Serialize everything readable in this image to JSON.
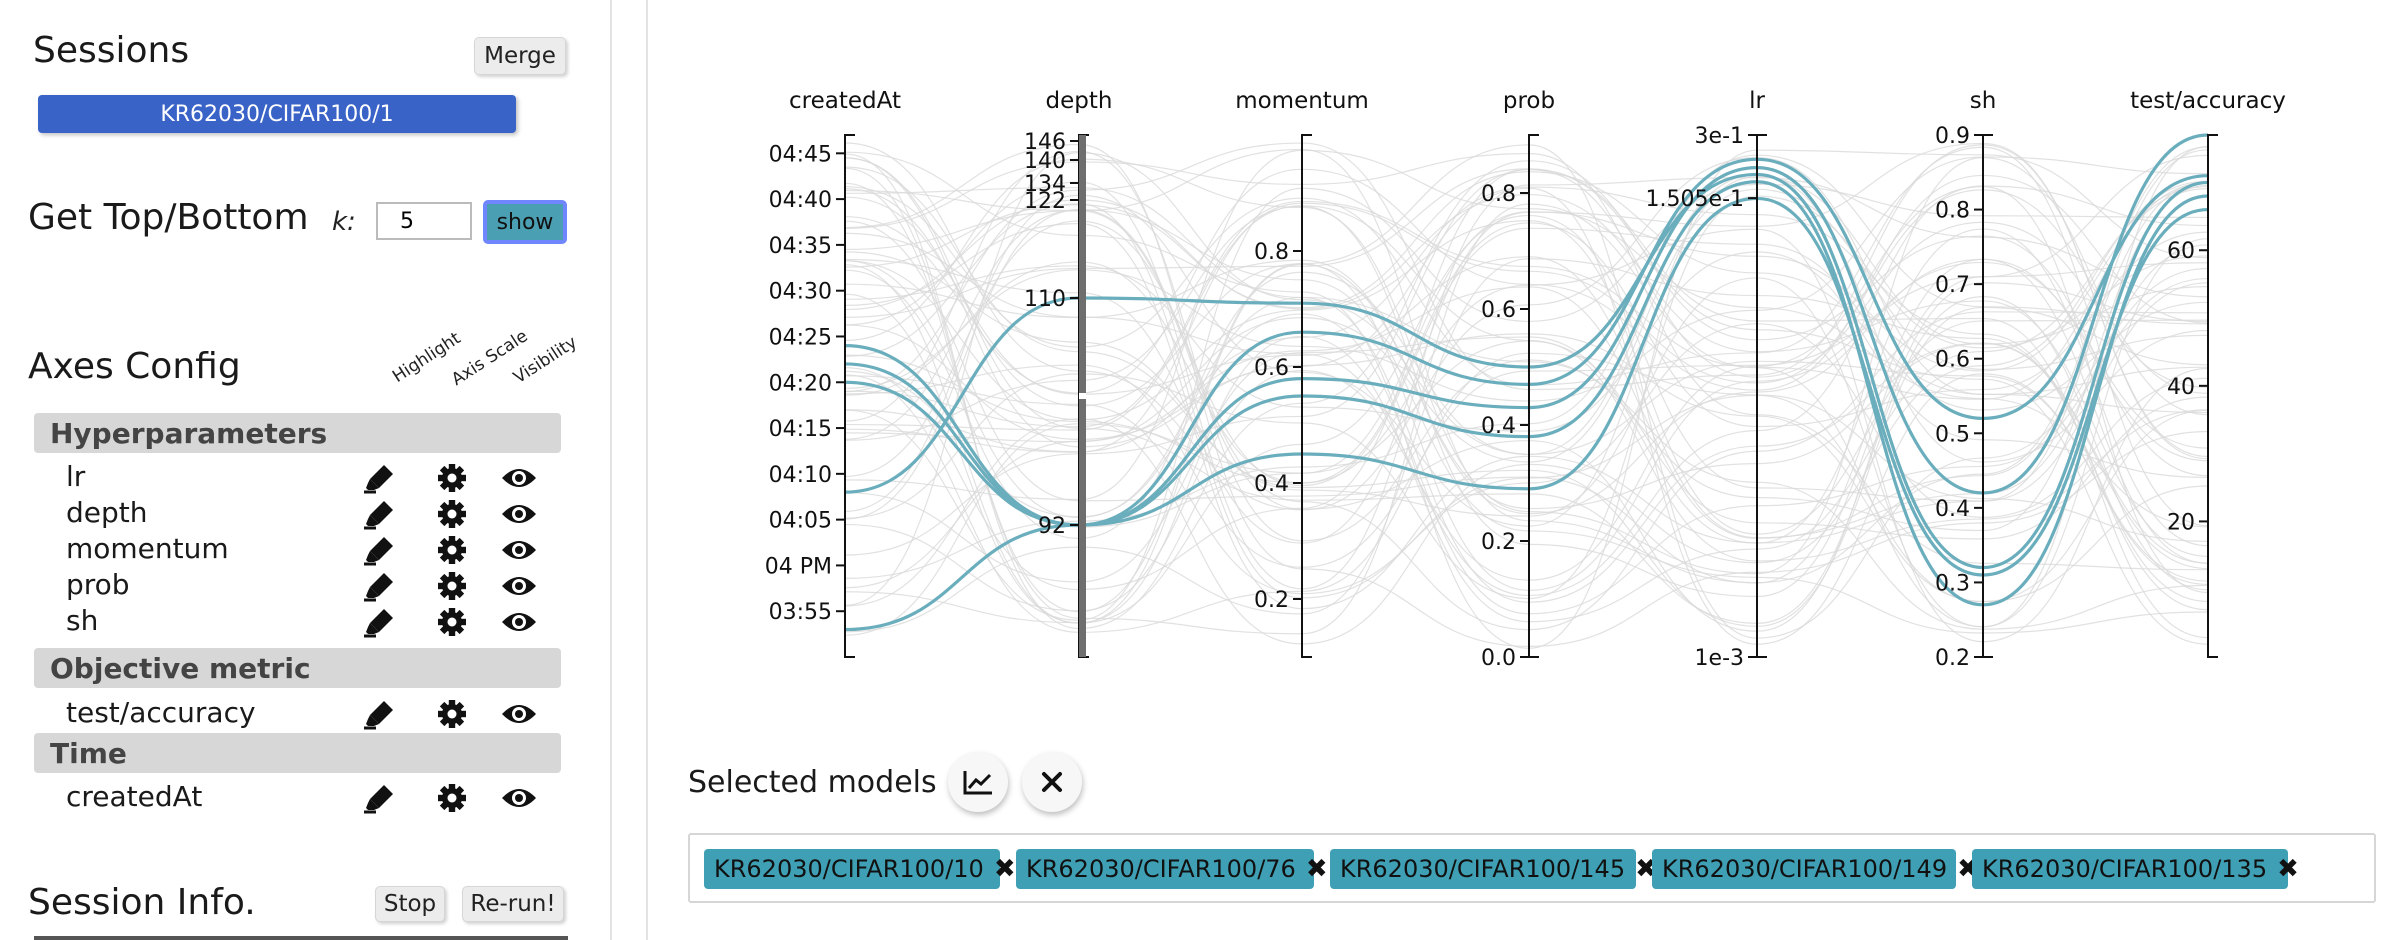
{
  "sidebar": {
    "sessions": {
      "title": "Sessions",
      "merge_label": "Merge",
      "selected_session": "KR62030/CIFAR100/1"
    },
    "top_bottom": {
      "title": "Get Top/Bottom",
      "k_label": "k:",
      "k_value": "5",
      "show_label": "show"
    },
    "axes_config": {
      "title": "Axes Config",
      "column_headers": [
        "Highlight",
        "Axis Scale",
        "Visibility"
      ],
      "groups": [
        {
          "name": "Hyperparameters",
          "axes": [
            "lr",
            "depth",
            "momentum",
            "prob",
            "sh"
          ]
        },
        {
          "name": "Objective metric",
          "axes": [
            "test/accuracy"
          ]
        },
        {
          "name": "Time",
          "axes": [
            "createdAt"
          ]
        }
      ],
      "icons": [
        "highlighter-icon",
        "gear-icon",
        "eye-icon"
      ]
    },
    "session_info": {
      "title": "Session Info.",
      "stop_label": "Stop",
      "rerun_label": "Re-run!"
    }
  },
  "main": {
    "chart_data": {
      "type": "parallel-coordinates",
      "axes": [
        {
          "name": "createdAt",
          "scale": "time",
          "ticks": [
            "04:45",
            "04:40",
            "04:35",
            "04:30",
            "04:25",
            "04:20",
            "04:15",
            "04:10",
            "04:05",
            "04 PM",
            "03:55"
          ]
        },
        {
          "name": "depth",
          "scale": "ordinal",
          "ticks": [
            "146",
            "140",
            "134",
            "122",
            "110",
            "92"
          ]
        },
        {
          "name": "momentum",
          "scale": "linear",
          "range": [
            0.1,
            1.0
          ],
          "ticks": [
            "0.8",
            "0.6",
            "0.4",
            "0.2"
          ]
        },
        {
          "name": "prob",
          "scale": "linear",
          "range": [
            0.0,
            0.9
          ],
          "ticks": [
            "0.8",
            "0.6",
            "0.4",
            "0.2",
            "0.0"
          ]
        },
        {
          "name": "lr",
          "scale": "log",
          "range": [
            0.001,
            0.3
          ],
          "ticks": [
            "3e-1",
            "1.505e-1",
            "1e-3"
          ]
        },
        {
          "name": "sh",
          "scale": "linear",
          "range": [
            0.2,
            0.9
          ],
          "ticks": [
            "0.9",
            "0.8",
            "0.7",
            "0.6",
            "0.5",
            "0.4",
            "0.3",
            "0.2"
          ]
        },
        {
          "name": "test/accuracy",
          "scale": "linear",
          "range": [
            0,
            77
          ],
          "ticks": [
            "60",
            "40",
            "20"
          ]
        }
      ],
      "highlighted_series": [
        {
          "name": "KR62030/CIFAR100/10",
          "values": {
            "createdAt": "04:24",
            "depth": 92,
            "momentum": 0.66,
            "prob": 0.47,
            "lr": 0.23,
            "sh": 0.52,
            "test/accuracy": 71
          }
        },
        {
          "name": "KR62030/CIFAR100/76",
          "values": {
            "createdAt": "04:22",
            "depth": 92,
            "momentum": 0.58,
            "prob": 0.43,
            "lr": 0.21,
            "sh": 0.42,
            "test/accuracy": 77
          }
        },
        {
          "name": "KR62030/CIFAR100/145",
          "values": {
            "createdAt": "04:08",
            "depth": 110,
            "momentum": 0.71,
            "prob": 0.5,
            "lr": 0.195,
            "sh": 0.32,
            "test/accuracy": 70
          }
        },
        {
          "name": "KR62030/CIFAR100/149",
          "values": {
            "createdAt": "04:20",
            "depth": 92,
            "momentum": 0.55,
            "prob": 0.38,
            "lr": 0.18,
            "sh": 0.27,
            "test/accuracy": 68
          }
        },
        {
          "name": "KR62030/CIFAR100/135",
          "values": {
            "createdAt": "03:53",
            "depth": 92,
            "momentum": 0.45,
            "prob": 0.29,
            "lr": 0.15,
            "sh": 0.31,
            "test/accuracy": 66
          }
        }
      ],
      "background_line_color": "#d9d9d9",
      "highlight_color": "#6aaebd"
    },
    "selected": {
      "title": "Selected models",
      "chips": [
        "KR62030/CIFAR100/10",
        "KR62030/CIFAR100/76",
        "KR62030/CIFAR100/145",
        "KR62030/CIFAR100/149",
        "KR62030/CIFAR100/135"
      ]
    }
  }
}
